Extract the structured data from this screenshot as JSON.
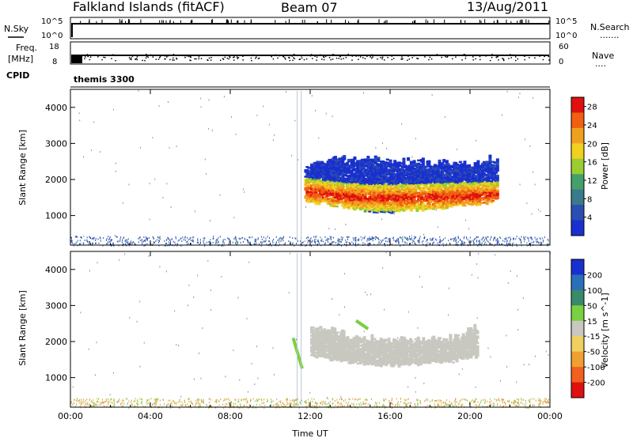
{
  "header": {
    "radar": "Falkland Islands (fitACF)",
    "beam": "Beam 07",
    "date": "13/Aug/2011"
  },
  "top_panels": {
    "nsky_label": "N.Sky",
    "nsearch_label": "N.Search",
    "nsky_ticks": [
      "10^5",
      "10^0"
    ],
    "nsearch_ticks": [
      "10^5",
      "10^0"
    ],
    "freq_label": "Freq.",
    "freq_unit": "[MHz]",
    "freq_ticks": [
      "18",
      "8"
    ],
    "nave_label": "Nave",
    "nave_ticks": [
      "60",
      "0"
    ],
    "cpid_label": "CPID",
    "cpid_value": "themis 3300"
  },
  "colors": {
    "power": [
      "#1a2fcf",
      "#2a4fb0",
      "#3a7a8a",
      "#44a06a",
      "#9acd32",
      "#f0d020",
      "#f0a020",
      "#f06010",
      "#e01010"
    ],
    "velocity": [
      "#1a2fcf",
      "#2a6fb8",
      "#3a8a6a",
      "#7ad040",
      "#c8c8c0",
      "#f0d060",
      "#f0a030",
      "#f06020",
      "#e01010"
    ],
    "noise_power": "#2a4fb0",
    "noise_velocity": "#e0a040",
    "ground_scatter": "#c8c8c0"
  },
  "chart_data": [
    {
      "type": "heatmap",
      "name": "power-panel",
      "ylabel": "Slant Range [km]",
      "xlabel": "",
      "x_ticks": [
        "00:00",
        "04:00",
        "08:00",
        "12:00",
        "16:00",
        "20:00",
        "00:00"
      ],
      "x_tick_hours": [
        0,
        4,
        8,
        12,
        16,
        20,
        24
      ],
      "xlim_hours": [
        0,
        24
      ],
      "y_ticks": [
        1000,
        2000,
        3000,
        4000
      ],
      "ylim": [
        180,
        4500
      ],
      "colorbar": {
        "label": "Power [dB]",
        "ticks": [
          "4",
          "8",
          "12",
          "16",
          "20",
          "24",
          "28"
        ],
        "range": [
          0,
          30
        ]
      },
      "echo_region": {
        "time_start_hours": 11.7,
        "time_end_hours": 21.3,
        "range_low_km": [
          1400,
          1300,
          1150,
          1100,
          1150,
          1200,
          1300,
          1400
        ],
        "range_high_km": [
          2300,
          2550,
          2550,
          2500,
          2450,
          2450,
          2400,
          2600
        ],
        "peak_range_km": [
          1650,
          1550,
          1480,
          1470,
          1480,
          1500,
          1520,
          1550
        ],
        "peak_power_db": 28
      }
    },
    {
      "type": "heatmap",
      "name": "velocity-panel",
      "ylabel": "Slant Range [km]",
      "xlabel": "Time UT",
      "x_ticks": [
        "00:00",
        "04:00",
        "08:00",
        "12:00",
        "16:00",
        "20:00",
        "00:00"
      ],
      "x_tick_hours": [
        0,
        4,
        8,
        12,
        16,
        20,
        24
      ],
      "xlim_hours": [
        0,
        24
      ],
      "y_ticks": [
        1000,
        2000,
        3000,
        4000
      ],
      "ylim": [
        180,
        4500
      ],
      "colorbar": {
        "label": "Velocity [m s^-1]",
        "ticks": [
          "200",
          "100",
          "50",
          "15",
          "-15",
          "-50",
          "-100",
          "-200"
        ]
      },
      "echo_region": {
        "time_start_hours": 12.0,
        "time_end_hours": 20.3,
        "range_low_km": [
          1600,
          1500,
          1400,
          1350,
          1350,
          1400,
          1450,
          1600
        ],
        "range_high_km": [
          2300,
          2250,
          2100,
          2000,
          2000,
          2050,
          2100,
          2350
        ],
        "type": "ground-scatter"
      },
      "streaks": [
        {
          "t0": 11.15,
          "r0": 2100,
          "t1": 11.6,
          "r1": 1250,
          "color": "#7ad040"
        },
        {
          "t0": 14.3,
          "r0": 2580,
          "t1": 14.9,
          "r1": 2350,
          "color": "#7ad040"
        }
      ]
    }
  ]
}
